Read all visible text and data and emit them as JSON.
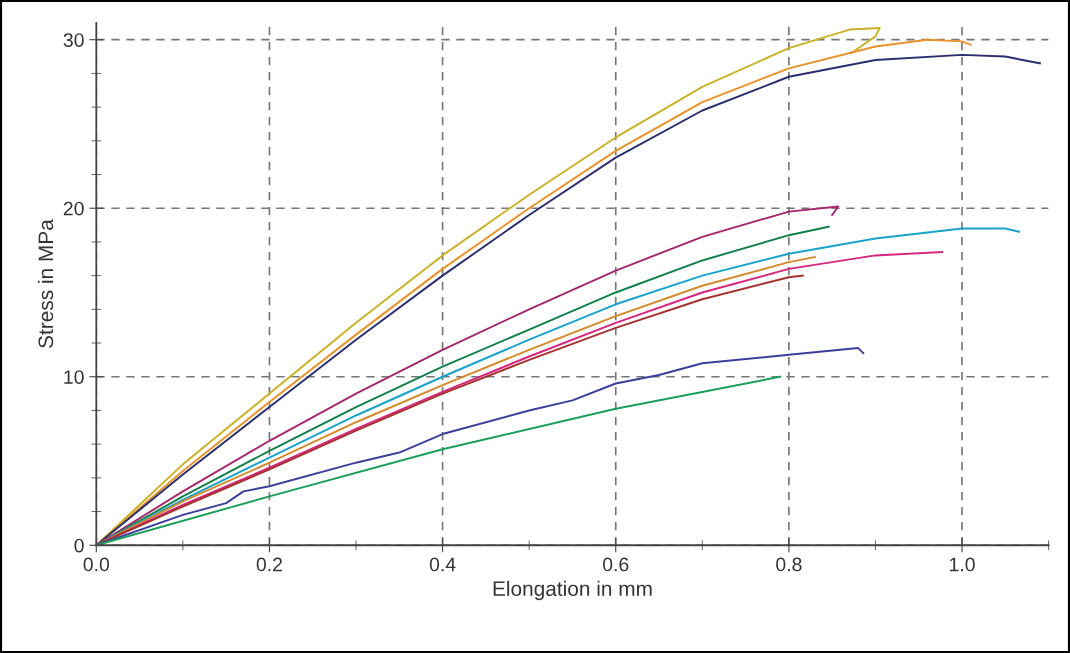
{
  "chart_data": {
    "type": "line",
    "xlabel": "Elongation in mm",
    "ylabel": "Stress in MPa",
    "xlim": [
      0,
      1.1
    ],
    "ylim": [
      0,
      31
    ],
    "xticks": [
      {
        "value": 0,
        "label": "0.0"
      },
      0.2,
      0.4,
      0.6,
      0.8,
      {
        "value": 1,
        "label": "1.0"
      }
    ],
    "yticks": [
      0,
      10,
      20,
      30
    ],
    "grid": true,
    "line_style": "solid",
    "marker": "none",
    "series": [
      {
        "color": "#c9b227",
        "x": [
          0,
          0.1,
          0.2,
          0.3,
          0.4,
          0.5,
          0.6,
          0.7,
          0.8,
          0.87,
          0.905,
          0.9,
          0.872
        ],
        "values": [
          0,
          4.8,
          9,
          13.2,
          17.2,
          20.8,
          24.2,
          27.2,
          29.5,
          30.6,
          30.7,
          30.2,
          29.2
        ]
      },
      {
        "color": "#e8922a",
        "x": [
          0,
          0.1,
          0.2,
          0.3,
          0.4,
          0.5,
          0.6,
          0.7,
          0.8,
          0.9,
          0.96,
          1.0,
          1.01
        ],
        "values": [
          0,
          4.4,
          8.5,
          12.5,
          16.4,
          20,
          23.4,
          26.3,
          28.3,
          29.6,
          30.0,
          29.9,
          29.7
        ]
      },
      {
        "color": "#2b2f6e",
        "x": [
          0,
          0.1,
          0.2,
          0.3,
          0.4,
          0.5,
          0.6,
          0.7,
          0.8,
          0.9,
          1.0,
          1.05,
          1.09
        ],
        "values": [
          0,
          4.2,
          8.2,
          12.2,
          16,
          19.6,
          23,
          25.8,
          27.8,
          28.8,
          29.1,
          29.0,
          28.6
        ]
      },
      {
        "color": "#a3286e",
        "x": [
          0,
          0.1,
          0.2,
          0.3,
          0.4,
          0.5,
          0.6,
          0.7,
          0.8,
          0.857,
          0.85
        ],
        "values": [
          0,
          3.2,
          6.2,
          9,
          11.6,
          14,
          16.3,
          18.3,
          19.8,
          20.1,
          19.6
        ]
      },
      {
        "color": "#12804a",
        "x": [
          0,
          0.1,
          0.2,
          0.3,
          0.4,
          0.5,
          0.6,
          0.7,
          0.8,
          0.846
        ],
        "values": [
          0,
          2.9,
          5.6,
          8.2,
          10.6,
          12.8,
          15,
          16.9,
          18.4,
          18.9
        ]
      },
      {
        "color": "#1aa3c8",
        "x": [
          0,
          0.1,
          0.2,
          0.3,
          0.4,
          0.5,
          0.6,
          0.7,
          0.8,
          0.9,
          1.0,
          1.05,
          1.066
        ],
        "values": [
          0,
          2.7,
          5.2,
          7.7,
          10,
          12.2,
          14.3,
          16,
          17.3,
          18.2,
          18.8,
          18.8,
          18.6
        ]
      },
      {
        "color": "#d38a2a",
        "x": [
          0,
          0.1,
          0.2,
          0.3,
          0.4,
          0.5,
          0.6,
          0.7,
          0.8,
          0.83
        ],
        "values": [
          0,
          2.6,
          4.9,
          7.3,
          9.5,
          11.6,
          13.6,
          15.4,
          16.8,
          17.1
        ]
      },
      {
        "color": "#d6267f",
        "x": [
          0,
          0.1,
          0.2,
          0.3,
          0.4,
          0.5,
          0.6,
          0.7,
          0.8,
          0.9,
          0.977
        ],
        "values": [
          0,
          2.4,
          4.6,
          6.9,
          9.1,
          11.2,
          13.2,
          15,
          16.4,
          17.2,
          17.4
        ]
      },
      {
        "color": "#a5322f",
        "x": [
          0,
          0.1,
          0.2,
          0.3,
          0.4,
          0.5,
          0.6,
          0.7,
          0.8,
          0.816
        ],
        "values": [
          0,
          2.3,
          4.5,
          6.8,
          9,
          11,
          12.9,
          14.6,
          15.9,
          16.0
        ]
      },
      {
        "color": "#3c3f9a",
        "x": [
          0,
          0.1,
          0.15,
          0.17,
          0.2,
          0.3,
          0.35,
          0.4,
          0.5,
          0.55,
          0.6,
          0.65,
          0.7,
          0.8,
          0.88,
          0.886
        ],
        "values": [
          0,
          1.8,
          2.5,
          3.2,
          3.5,
          4.9,
          5.5,
          6.6,
          8,
          8.6,
          9.6,
          10.1,
          10.8,
          11.3,
          11.7,
          11.4
        ]
      },
      {
        "color": "#1a9e5a",
        "x": [
          0,
          0.2,
          0.4,
          0.6,
          0.79
        ],
        "values": [
          0,
          2.9,
          5.7,
          8.1,
          10.0
        ]
      }
    ]
  }
}
